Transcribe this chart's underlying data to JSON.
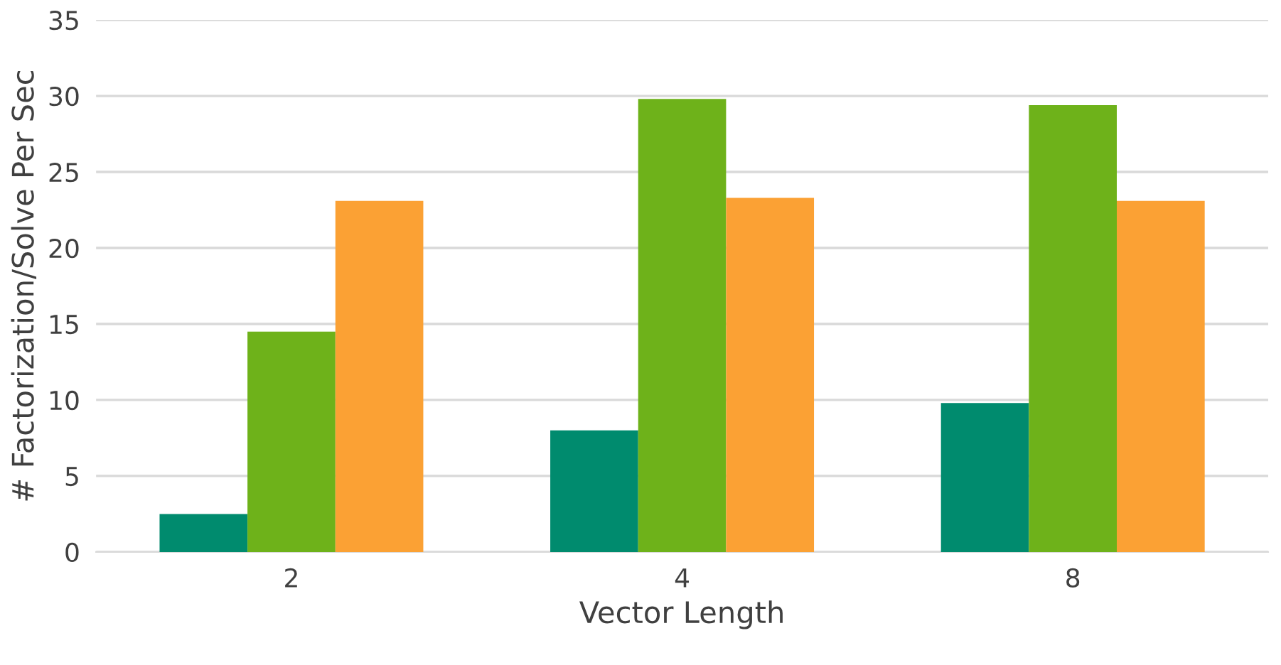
{
  "chart_data": {
    "type": "bar",
    "xlabel": "Vector Length",
    "ylabel": "# Factorization/Solve Per Sec",
    "categories": [
      "2",
      "4",
      "8"
    ],
    "series": [
      {
        "color": "#008b6e",
        "values": [
          2.5,
          8.0,
          9.8
        ]
      },
      {
        "color": "#6eb21a",
        "values": [
          14.5,
          29.8,
          29.4
        ]
      },
      {
        "color": "#fba134",
        "values": [
          23.1,
          23.3,
          23.1
        ]
      }
    ],
    "ylim": [
      0,
      35
    ],
    "yticks": [
      0,
      5,
      10,
      15,
      20,
      25,
      30,
      35
    ],
    "grid": "y"
  }
}
